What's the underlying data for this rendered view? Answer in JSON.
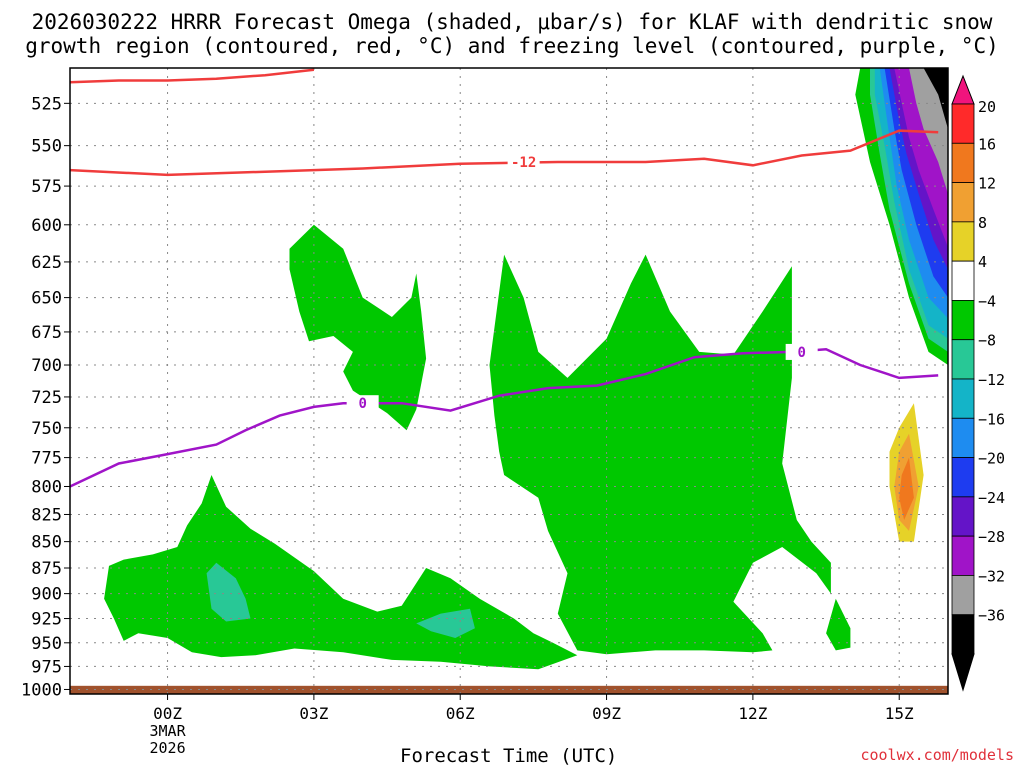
{
  "chart_data": {
    "type": "heatmap",
    "title_line1": "2026030222 HRRR Forecast Omega (shaded, μbar/s) for KLAF with dendritic snow",
    "title_line2": "growth region (contoured, red, °C) and freezing level (contoured, purple, °C)",
    "xlabel": "Forecast Time (UTC)",
    "credit": "coolwx.com/models",
    "x_ticks": [
      {
        "hour": 2,
        "label": "00Z",
        "sub1": "3MAR",
        "sub2": "2026"
      },
      {
        "hour": 5,
        "label": "03Z"
      },
      {
        "hour": 8,
        "label": "06Z"
      },
      {
        "hour": 11,
        "label": "09Z"
      },
      {
        "hour": 14,
        "label": "12Z"
      },
      {
        "hour": 17,
        "label": "15Z"
      }
    ],
    "xlim": [
      0.0,
      18.0
    ],
    "y_ticks": [
      525,
      550,
      575,
      600,
      625,
      650,
      675,
      700,
      725,
      750,
      775,
      800,
      825,
      850,
      875,
      900,
      925,
      950,
      975,
      1000
    ],
    "ylim": [
      505,
      1005
    ],
    "y_scale": "log-pressure",
    "grid": true,
    "colorbar": {
      "labels": [
        "20",
        "16",
        "12",
        "8",
        "4",
        "−4",
        "−8",
        "−12",
        "−16",
        "−20",
        "−24",
        "−28",
        "−32",
        "−36"
      ],
      "colors": [
        "#ff2a2a",
        "#f0781e",
        "#f0a032",
        "#e6d228",
        "#ffffff",
        "#00c800",
        "#28c896",
        "#14b4c8",
        "#1e8cf0",
        "#1e3cf0",
        "#6414c8",
        "#a014c8",
        "#a0a0a0",
        "#000000"
      ],
      "top_color": "#f0147d",
      "bottom_color": "#000000"
    },
    "contours": {
      "freezing_level_label": "0",
      "freezing_level_color": "#a014c8",
      "freezing_level": [
        [
          0.0,
          800
        ],
        [
          1.0,
          780
        ],
        [
          2.0,
          772
        ],
        [
          3.0,
          764
        ],
        [
          3.6,
          752
        ],
        [
          4.3,
          740
        ],
        [
          5.0,
          733
        ],
        [
          5.6,
          730
        ],
        [
          6.8,
          730
        ],
        [
          7.8,
          736
        ],
        [
          8.8,
          724
        ],
        [
          9.8,
          718
        ],
        [
          10.8,
          716
        ],
        [
          11.8,
          707
        ],
        [
          12.8,
          694
        ],
        [
          13.8,
          691
        ],
        [
          14.8,
          690
        ],
        [
          15.5,
          688
        ],
        [
          16.2,
          700
        ],
        [
          17.0,
          710
        ],
        [
          17.8,
          708
        ]
      ],
      "snow_growth_label": "-12",
      "snow_growth_color": "#f03c3c",
      "snow_growth_lower": [
        [
          0.0,
          565
        ],
        [
          2.0,
          568
        ],
        [
          4.0,
          566
        ],
        [
          6.0,
          564
        ],
        [
          8.0,
          561
        ],
        [
          10.0,
          560
        ],
        [
          11.8,
          560
        ],
        [
          13.0,
          558
        ],
        [
          14.0,
          562
        ],
        [
          15.0,
          556
        ],
        [
          16.0,
          553
        ],
        [
          17.0,
          541
        ],
        [
          17.8,
          542
        ]
      ],
      "snow_growth_upper": [
        [
          0.0,
          513
        ],
        [
          1.0,
          512
        ],
        [
          2.0,
          512
        ],
        [
          3.0,
          511
        ],
        [
          4.0,
          509
        ],
        [
          5.0,
          506
        ]
      ]
    },
    "omega_regions": [
      {
        "level": "-4",
        "points": [
          [
            4.5,
            616
          ],
          [
            5.0,
            600
          ],
          [
            5.6,
            616
          ],
          [
            6.0,
            650
          ],
          [
            6.6,
            664
          ],
          [
            7.0,
            650
          ],
          [
            7.1,
            633
          ],
          [
            7.2,
            660
          ],
          [
            7.3,
            695
          ],
          [
            7.1,
            735
          ],
          [
            6.9,
            752
          ],
          [
            6.5,
            738
          ],
          [
            5.8,
            720
          ],
          [
            5.6,
            705
          ],
          [
            5.8,
            690
          ],
          [
            5.4,
            678
          ],
          [
            4.9,
            682
          ],
          [
            4.7,
            660
          ],
          [
            4.5,
            630
          ]
        ]
      },
      {
        "level": "-4",
        "points": [
          [
            8.9,
            620
          ],
          [
            9.3,
            650
          ],
          [
            9.6,
            690
          ],
          [
            10.2,
            710
          ],
          [
            11.0,
            680
          ],
          [
            11.5,
            640
          ],
          [
            11.8,
            620
          ],
          [
            12.3,
            660
          ],
          [
            12.9,
            690
          ],
          [
            13.6,
            692
          ],
          [
            14.2,
            660
          ],
          [
            14.8,
            628
          ],
          [
            14.8,
            710
          ],
          [
            14.6,
            780
          ],
          [
            14.9,
            830
          ],
          [
            15.2,
            850
          ],
          [
            15.6,
            870
          ],
          [
            15.6,
            900
          ],
          [
            15.3,
            880
          ],
          [
            14.6,
            855
          ],
          [
            14.0,
            870
          ],
          [
            13.6,
            908
          ],
          [
            14.2,
            940
          ],
          [
            14.4,
            958
          ],
          [
            14.0,
            960
          ],
          [
            13.0,
            958
          ],
          [
            12.0,
            958
          ],
          [
            11.0,
            962
          ],
          [
            10.4,
            958
          ],
          [
            10.0,
            920
          ],
          [
            10.2,
            880
          ],
          [
            9.8,
            840
          ],
          [
            9.6,
            810
          ],
          [
            8.9,
            790
          ],
          [
            8.8,
            770
          ],
          [
            8.7,
            740
          ],
          [
            8.6,
            700
          ]
        ]
      },
      {
        "level": "-4",
        "points": [
          [
            0.7,
            905
          ],
          [
            0.8,
            873
          ],
          [
            1.1,
            867
          ],
          [
            1.7,
            862
          ],
          [
            2.2,
            855
          ],
          [
            2.4,
            835
          ],
          [
            2.7,
            815
          ],
          [
            2.9,
            790
          ],
          [
            3.2,
            818
          ],
          [
            3.7,
            838
          ],
          [
            4.2,
            852
          ],
          [
            5.0,
            878
          ],
          [
            5.6,
            905
          ],
          [
            6.3,
            918
          ],
          [
            6.8,
            912
          ],
          [
            7.3,
            875
          ],
          [
            7.8,
            885
          ],
          [
            8.4,
            905
          ],
          [
            9.1,
            925
          ],
          [
            9.5,
            940
          ],
          [
            9.9,
            950
          ],
          [
            10.4,
            963
          ],
          [
            9.6,
            978
          ],
          [
            8.6,
            975
          ],
          [
            7.6,
            970
          ],
          [
            6.6,
            968
          ],
          [
            5.6,
            960
          ],
          [
            4.6,
            956
          ],
          [
            3.8,
            963
          ],
          [
            3.1,
            965
          ],
          [
            2.5,
            960
          ],
          [
            2.0,
            945
          ],
          [
            1.4,
            940
          ],
          [
            1.1,
            948
          ],
          [
            0.9,
            925
          ]
        ]
      },
      {
        "level": "-4",
        "points": [
          [
            15.5,
            940
          ],
          [
            15.7,
            905
          ],
          [
            16.0,
            935
          ],
          [
            16.0,
            955
          ],
          [
            15.7,
            958
          ]
        ]
      },
      {
        "level": "-8",
        "points": [
          [
            2.8,
            880
          ],
          [
            3.0,
            870
          ],
          [
            3.4,
            885
          ],
          [
            3.6,
            905
          ],
          [
            3.7,
            925
          ],
          [
            3.2,
            928
          ],
          [
            2.9,
            915
          ]
        ]
      },
      {
        "level": "-8",
        "points": [
          [
            7.1,
            930
          ],
          [
            7.6,
            920
          ],
          [
            8.2,
            915
          ],
          [
            8.3,
            935
          ],
          [
            7.9,
            945
          ],
          [
            7.4,
            938
          ]
        ]
      },
      {
        "level": "4",
        "points": [
          [
            15.6,
            565
          ],
          [
            15.8,
            530
          ],
          [
            16.0,
            550
          ],
          [
            16.0,
            620
          ],
          [
            15.9,
            667
          ],
          [
            15.7,
            630
          ]
        ]
      },
      {
        "level": "4",
        "points": [
          [
            16.9,
            720
          ],
          [
            17.2,
            700
          ],
          [
            17.6,
            740
          ],
          [
            17.8,
            800
          ],
          [
            17.5,
            860
          ],
          [
            17.1,
            885
          ],
          [
            16.6,
            860
          ],
          [
            16.3,
            810
          ],
          [
            16.3,
            760
          ],
          [
            16.6,
            728
          ]
        ]
      },
      {
        "level": "8",
        "points": [
          [
            17.0,
            750
          ],
          [
            17.3,
            730
          ],
          [
            17.5,
            790
          ],
          [
            17.3,
            850
          ],
          [
            17.0,
            850
          ],
          [
            16.8,
            800
          ],
          [
            16.8,
            770
          ]
        ]
      },
      {
        "level": "12",
        "points": [
          [
            17.0,
            770
          ],
          [
            17.2,
            755
          ],
          [
            17.4,
            800
          ],
          [
            17.2,
            840
          ],
          [
            17.0,
            830
          ],
          [
            16.9,
            800
          ]
        ]
      },
      {
        "level": "16",
        "points": [
          [
            17.05,
            790
          ],
          [
            17.2,
            775
          ],
          [
            17.3,
            810
          ],
          [
            17.1,
            830
          ],
          [
            17.0,
            810
          ]
        ]
      },
      {
        "level": "-4",
        "points": [
          [
            16.2,
            505
          ],
          [
            16.8,
            505
          ],
          [
            17.0,
            560
          ],
          [
            17.6,
            610
          ],
          [
            18.0,
            640
          ],
          [
            18.0,
            700
          ],
          [
            17.6,
            690
          ],
          [
            17.2,
            650
          ],
          [
            16.8,
            600
          ],
          [
            16.4,
            560
          ],
          [
            16.1,
            520
          ]
        ]
      },
      {
        "level": "-8",
        "points": [
          [
            16.4,
            505
          ],
          [
            16.8,
            505
          ],
          [
            17.1,
            560
          ],
          [
            17.6,
            605
          ],
          [
            18.0,
            630
          ],
          [
            18.0,
            690
          ],
          [
            17.6,
            680
          ],
          [
            17.2,
            640
          ],
          [
            16.8,
            590
          ],
          [
            16.6,
            555
          ],
          [
            16.4,
            520
          ]
        ]
      },
      {
        "level": "-12",
        "points": [
          [
            16.5,
            505
          ],
          [
            16.9,
            505
          ],
          [
            17.2,
            555
          ],
          [
            17.7,
            600
          ],
          [
            18.0,
            620
          ],
          [
            18.0,
            680
          ],
          [
            17.6,
            670
          ],
          [
            17.2,
            630
          ],
          [
            16.9,
            585
          ],
          [
            16.7,
            550
          ],
          [
            16.5,
            520
          ]
        ]
      },
      {
        "level": "-16",
        "points": [
          [
            16.6,
            505
          ],
          [
            17.0,
            505
          ],
          [
            17.3,
            550
          ],
          [
            17.8,
            595
          ],
          [
            18.0,
            610
          ],
          [
            18.0,
            665
          ],
          [
            17.6,
            650
          ],
          [
            17.2,
            610
          ],
          [
            16.95,
            575
          ],
          [
            16.8,
            545
          ]
        ]
      },
      {
        "level": "-20",
        "points": [
          [
            16.7,
            505
          ],
          [
            17.1,
            505
          ],
          [
            17.4,
            548
          ],
          [
            17.9,
            590
          ],
          [
            18.0,
            600
          ],
          [
            18.0,
            650
          ],
          [
            17.7,
            635
          ],
          [
            17.35,
            600
          ],
          [
            17.05,
            565
          ],
          [
            16.9,
            540
          ]
        ]
      },
      {
        "level": "-24",
        "points": [
          [
            16.8,
            505
          ],
          [
            17.2,
            505
          ],
          [
            17.6,
            545
          ],
          [
            18.0,
            585
          ],
          [
            18.0,
            630
          ],
          [
            17.7,
            610
          ],
          [
            17.4,
            580
          ],
          [
            17.15,
            555
          ],
          [
            17.0,
            535
          ]
        ]
      },
      {
        "level": "-28",
        "points": [
          [
            16.9,
            505
          ],
          [
            17.3,
            505
          ],
          [
            17.8,
            540
          ],
          [
            18.0,
            560
          ],
          [
            18.0,
            615
          ],
          [
            17.7,
            590
          ],
          [
            17.4,
            565
          ],
          [
            17.2,
            545
          ],
          [
            17.05,
            525
          ]
        ]
      },
      {
        "level": "-32",
        "points": [
          [
            17.2,
            505
          ],
          [
            17.6,
            505
          ],
          [
            18.0,
            520
          ],
          [
            18.0,
            580
          ],
          [
            17.8,
            560
          ],
          [
            17.5,
            540
          ],
          [
            17.35,
            525
          ]
        ]
      },
      {
        "level": "-36",
        "points": [
          [
            17.5,
            505
          ],
          [
            18.0,
            505
          ],
          [
            18.0,
            540
          ],
          [
            17.8,
            520
          ]
        ]
      }
    ],
    "ground": {
      "color": "#a0522d"
    }
  }
}
